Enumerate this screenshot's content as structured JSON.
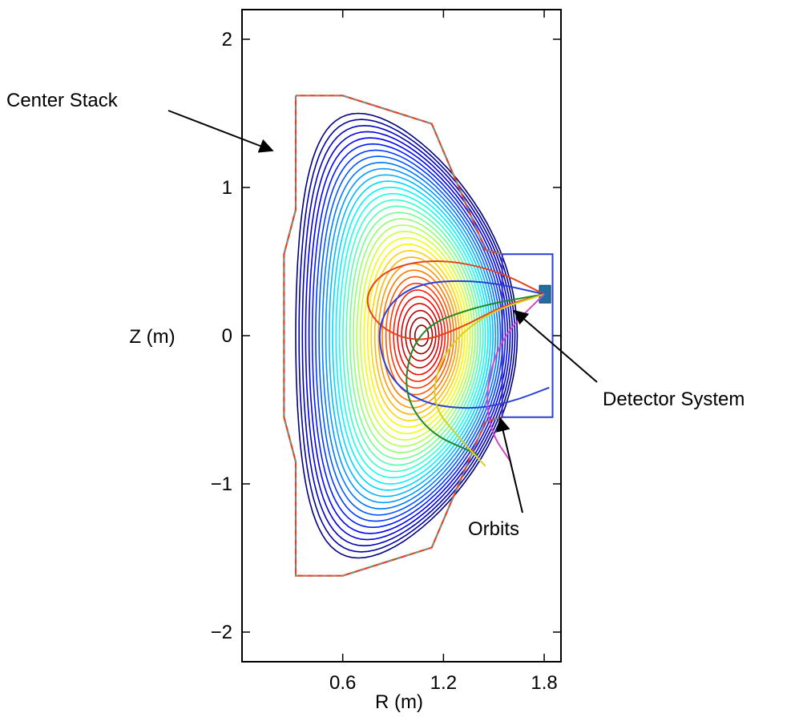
{
  "chart_data": {
    "type": "contour",
    "xlabel": "R (m)",
    "ylabel": "Z (m)",
    "xlim": [
      0.0,
      1.9
    ],
    "ylim": [
      -2.2,
      2.2
    ],
    "x_ticks": [
      {
        "value": 0.6,
        "label": "0.6"
      },
      {
        "value": 1.2,
        "label": "1.2"
      },
      {
        "value": 1.8,
        "label": "1.8"
      }
    ],
    "y_ticks": [
      {
        "value": -2,
        "label": "−2"
      },
      {
        "value": -1,
        "label": "−1"
      },
      {
        "value": 0,
        "label": "0"
      },
      {
        "value": 1,
        "label": "1"
      },
      {
        "value": 2,
        "label": "2"
      }
    ],
    "annotations": {
      "center_stack": "Center Stack",
      "detector_system": "Detector System",
      "orbits": "Orbits"
    },
    "magnetic_axis": {
      "r": 1.07,
      "z": 0.0
    },
    "flux_surfaces": {
      "count": 34,
      "inner_half_width": 0.04,
      "outer_half_width": 0.66,
      "inner_half_height": 0.07,
      "outer_half_height": 1.5,
      "colormap": "jet"
    },
    "wall": [
      [
        0.32,
        1.62
      ],
      [
        0.48,
        1.62
      ],
      [
        0.6,
        1.62
      ],
      [
        1.13,
        1.43
      ],
      [
        1.45,
        0.58
      ],
      [
        1.55,
        0.55
      ],
      [
        1.55,
        -0.55
      ],
      [
        1.45,
        -0.58
      ],
      [
        1.13,
        -1.43
      ],
      [
        0.6,
        -1.62
      ],
      [
        0.48,
        -1.62
      ],
      [
        0.32,
        -1.62
      ],
      [
        0.32,
        -0.85
      ],
      [
        0.25,
        -0.55
      ],
      [
        0.25,
        0.55
      ],
      [
        0.32,
        0.85
      ],
      [
        0.32,
        1.62
      ]
    ],
    "detector_box": {
      "r_min": 1.55,
      "r_max": 1.85,
      "z_min": -0.55,
      "z_max": 0.55
    },
    "detector": {
      "r": 1.8,
      "z": 0.28
    },
    "orbits": [
      {
        "color": "#e8401a",
        "points": [
          [
            1.8,
            0.28
          ],
          [
            1.5,
            0.45
          ],
          [
            1.15,
            0.52
          ],
          [
            0.85,
            0.45
          ],
          [
            0.72,
            0.25
          ],
          [
            0.82,
            0.05
          ],
          [
            1.05,
            -0.05
          ],
          [
            1.3,
            0.05
          ],
          [
            1.55,
            0.2
          ],
          [
            1.8,
            0.28
          ]
        ]
      },
      {
        "color": "#2a3fd8",
        "points": [
          [
            1.8,
            0.28
          ],
          [
            1.4,
            0.38
          ],
          [
            1.0,
            0.35
          ],
          [
            0.8,
            0.1
          ],
          [
            0.85,
            -0.25
          ],
          [
            1.05,
            -0.45
          ],
          [
            1.35,
            -0.5
          ],
          [
            1.6,
            -0.45
          ],
          [
            1.83,
            -0.35
          ]
        ]
      },
      {
        "color": "#1f8a2a",
        "points": [
          [
            1.8,
            0.28
          ],
          [
            1.4,
            0.2
          ],
          [
            1.05,
            0.05
          ],
          [
            0.95,
            -0.35
          ],
          [
            1.1,
            -0.65
          ],
          [
            1.4,
            -0.8
          ]
        ]
      },
      {
        "color": "#d6d21a",
        "points": [
          [
            1.8,
            0.28
          ],
          [
            1.45,
            0.15
          ],
          [
            1.2,
            -0.1
          ],
          [
            1.12,
            -0.45
          ],
          [
            1.3,
            -0.7
          ],
          [
            1.45,
            -0.88
          ]
        ]
      },
      {
        "color": "#d448c8",
        "points": [
          [
            1.8,
            0.28
          ],
          [
            1.55,
            0.0
          ],
          [
            1.45,
            -0.35
          ],
          [
            1.48,
            -0.65
          ],
          [
            1.6,
            -0.85
          ]
        ]
      }
    ]
  }
}
